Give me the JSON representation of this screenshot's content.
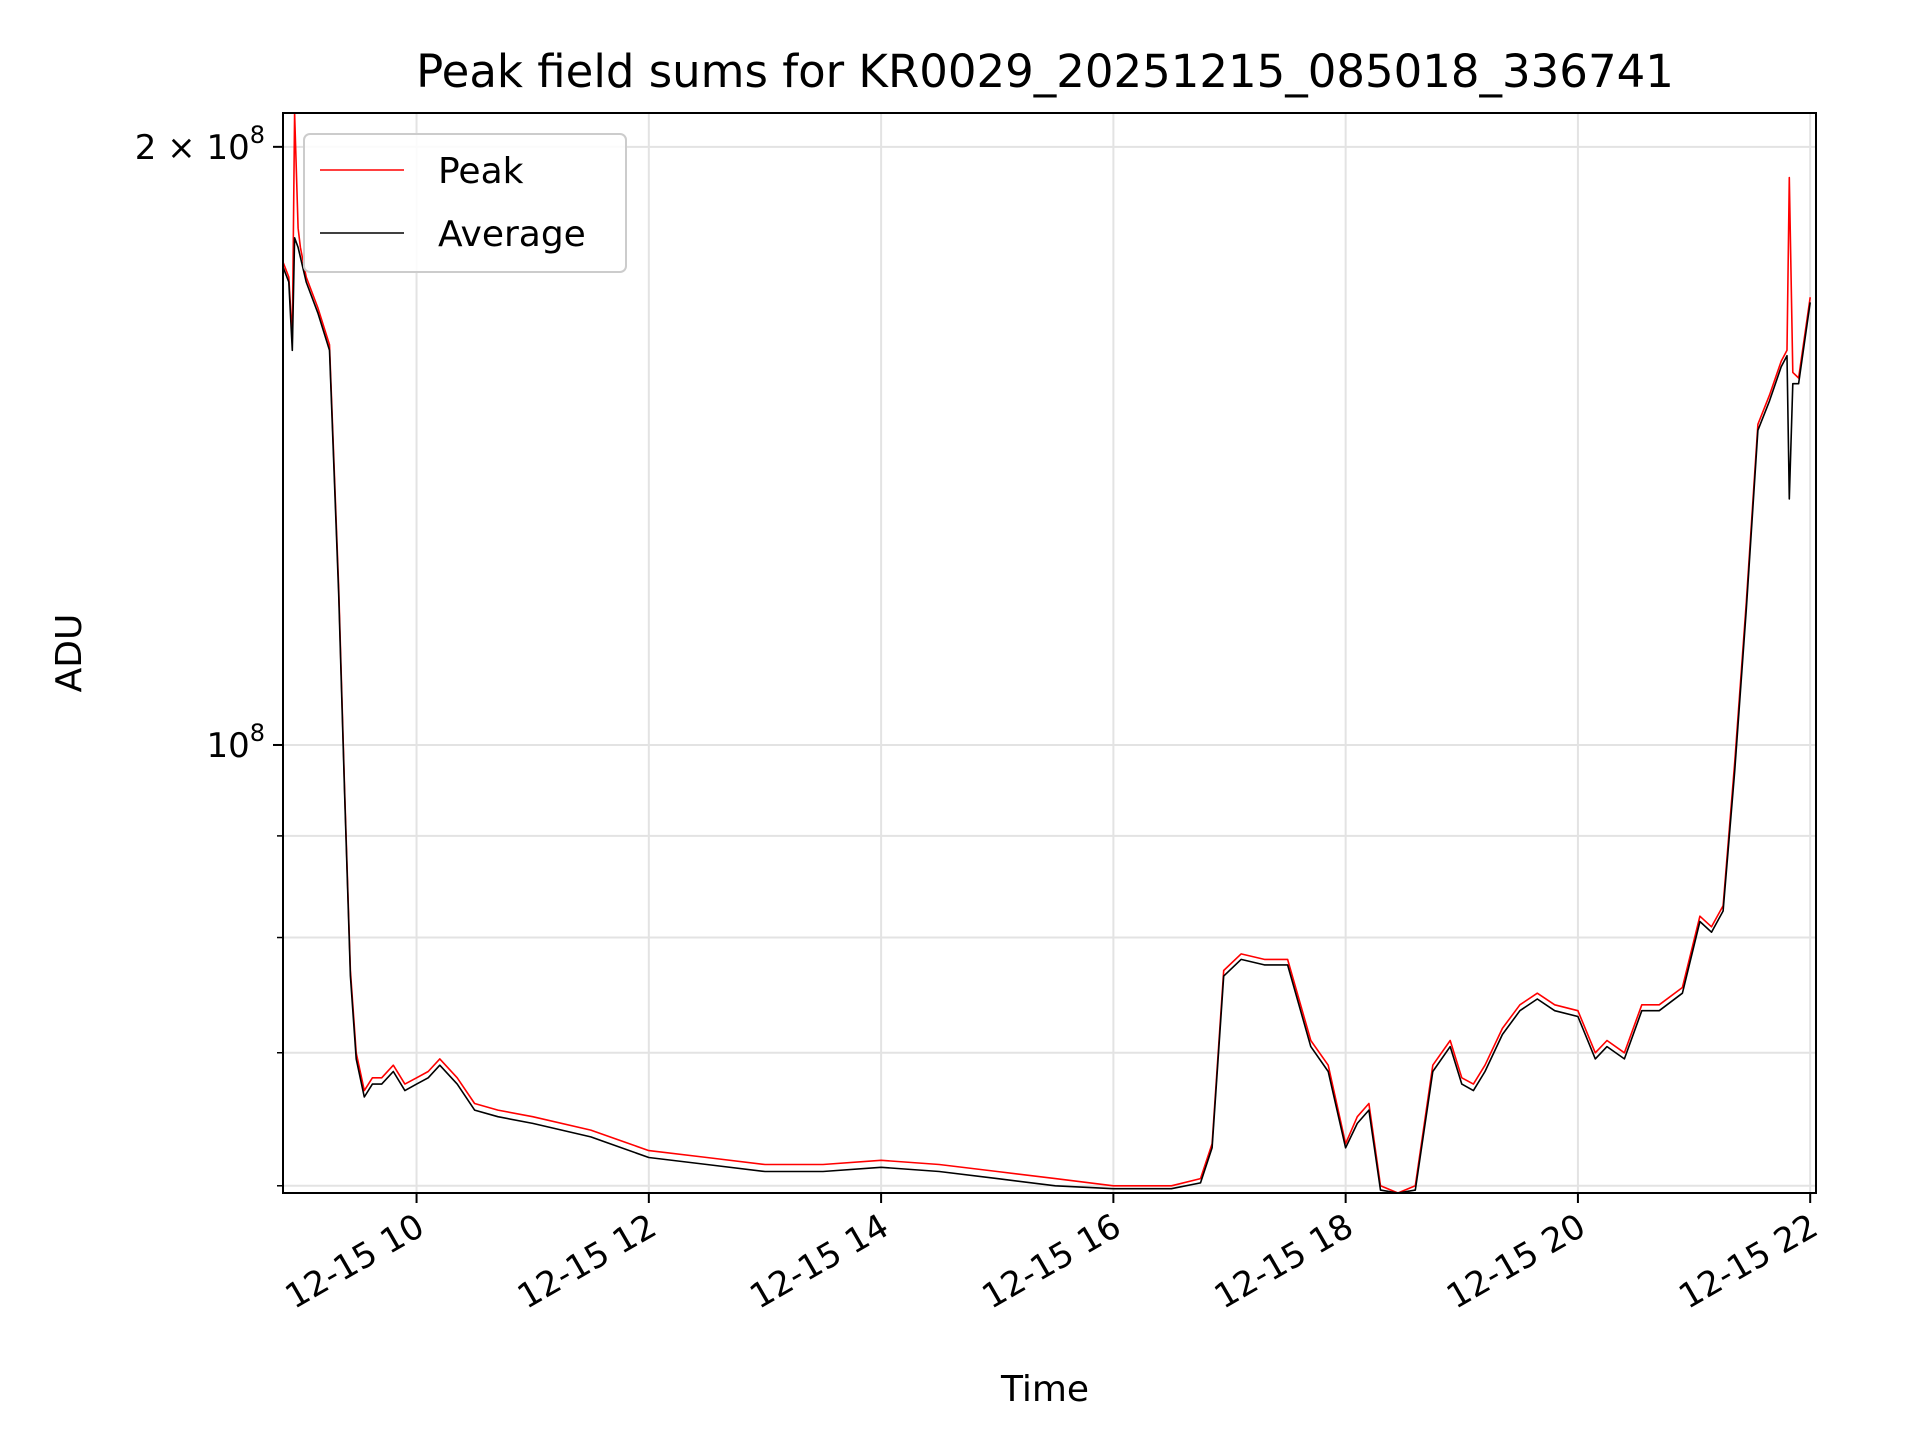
{
  "chart_data": {
    "type": "line",
    "title": "Peak field sums for KR0029_20251215_085018_336741",
    "xlabel": "Time",
    "ylabel": "ADU",
    "x_unit": "hour of 2025-12-15",
    "xlim": [
      8.85,
      22.05
    ],
    "ylim": [
      59500000,
      208000000
    ],
    "yscale": "log",
    "grid": true,
    "legend": {
      "placement": "top-left",
      "entries": [
        "Peak",
        "Average"
      ]
    },
    "x_ticks": [
      {
        "value": 10,
        "label": "12-15 10"
      },
      {
        "value": 12,
        "label": "12-15 12"
      },
      {
        "value": 14,
        "label": "12-15 14"
      },
      {
        "value": 16,
        "label": "12-15 16"
      },
      {
        "value": 18,
        "label": "12-15 18"
      },
      {
        "value": 20,
        "label": "12-15 20"
      },
      {
        "value": 22,
        "label": "12-15 22"
      }
    ],
    "y_major_ticks": [
      {
        "value": 100000000,
        "label_base": "10",
        "label_exp": "8"
      },
      {
        "value": 200000000,
        "label_base": "2 × 10",
        "label_exp": "8"
      }
    ],
    "y_minor_ticks": [
      60000000,
      70000000,
      80000000,
      90000000
    ],
    "series": [
      {
        "name": "Peak",
        "color": "#ff0000",
        "x": [
          8.85,
          8.9,
          8.93,
          8.95,
          8.98,
          9.0,
          9.05,
          9.15,
          9.25,
          9.33,
          9.38,
          9.43,
          9.48,
          9.55,
          9.62,
          9.7,
          9.8,
          9.9,
          10.0,
          10.1,
          10.2,
          10.35,
          10.5,
          10.7,
          11.0,
          11.5,
          12.0,
          12.5,
          13.0,
          13.5,
          14.0,
          14.5,
          15.0,
          15.5,
          16.0,
          16.5,
          16.75,
          16.85,
          16.95,
          17.1,
          17.3,
          17.5,
          17.7,
          17.85,
          18.0,
          18.1,
          18.2,
          18.3,
          18.45,
          18.6,
          18.75,
          18.9,
          19.0,
          19.1,
          19.2,
          19.35,
          19.5,
          19.65,
          19.8,
          20.0,
          20.15,
          20.25,
          20.4,
          20.55,
          20.7,
          20.9,
          21.05,
          21.15,
          21.25,
          21.35,
          21.45,
          21.55,
          21.65,
          21.75,
          21.8,
          21.82,
          21.85,
          21.9,
          22.0
        ],
        "values": [
          175000000,
          172000000,
          160000000,
          208000000,
          182000000,
          178000000,
          172000000,
          166000000,
          159000000,
          120000000,
          95000000,
          77000000,
          70000000,
          67000000,
          68000000,
          68000000,
          69000000,
          67500000,
          68000000,
          68500000,
          69500000,
          68000000,
          66000000,
          65500000,
          65000000,
          64000000,
          62500000,
          62000000,
          61500000,
          61500000,
          61800000,
          61500000,
          61000000,
          60500000,
          60000000,
          60000000,
          60500000,
          63000000,
          77000000,
          78500000,
          78000000,
          78000000,
          71000000,
          69000000,
          63000000,
          65000000,
          66000000,
          60000000,
          59500000,
          60000000,
          69000000,
          71000000,
          68000000,
          67500000,
          69000000,
          72000000,
          74000000,
          75000000,
          74000000,
          73500000,
          70000000,
          71000000,
          70000000,
          74000000,
          74000000,
          75500000,
          82000000,
          81000000,
          83000000,
          98000000,
          118000000,
          145000000,
          150000000,
          156000000,
          158000000,
          193000000,
          154000000,
          153000000,
          168000000
        ]
      },
      {
        "name": "Average",
        "color": "#000000",
        "x": [
          8.85,
          8.9,
          8.93,
          8.95,
          8.98,
          9.0,
          9.05,
          9.15,
          9.25,
          9.33,
          9.38,
          9.43,
          9.48,
          9.55,
          9.62,
          9.7,
          9.8,
          9.9,
          10.0,
          10.1,
          10.2,
          10.35,
          10.5,
          10.7,
          11.0,
          11.5,
          12.0,
          12.5,
          13.0,
          13.5,
          14.0,
          14.5,
          15.0,
          15.5,
          16.0,
          16.5,
          16.75,
          16.85,
          16.95,
          17.1,
          17.3,
          17.5,
          17.7,
          17.85,
          18.0,
          18.1,
          18.2,
          18.3,
          18.45,
          18.6,
          18.75,
          18.9,
          19.0,
          19.1,
          19.2,
          19.35,
          19.5,
          19.65,
          19.8,
          20.0,
          20.15,
          20.25,
          20.4,
          20.55,
          20.7,
          20.9,
          21.05,
          21.15,
          21.25,
          21.35,
          21.45,
          21.55,
          21.65,
          21.75,
          21.8,
          21.82,
          21.85,
          21.9,
          22.0
        ],
        "values": [
          174000000,
          171000000,
          158000000,
          180000000,
          178000000,
          176000000,
          171000000,
          165000000,
          158000000,
          119000000,
          94500000,
          76500000,
          69500000,
          66500000,
          67500000,
          67500000,
          68500000,
          67000000,
          67500000,
          68000000,
          69000000,
          67500000,
          65500000,
          65000000,
          64500000,
          63500000,
          62000000,
          61500000,
          61000000,
          61000000,
          61300000,
          61000000,
          60500000,
          60000000,
          59800000,
          59800000,
          60200000,
          62700000,
          76500000,
          78000000,
          77500000,
          77500000,
          70500000,
          68500000,
          62700000,
          64500000,
          65500000,
          59700000,
          59500000,
          59700000,
          68500000,
          70500000,
          67500000,
          67000000,
          68500000,
          71500000,
          73500000,
          74500000,
          73500000,
          73000000,
          69500000,
          70500000,
          69500000,
          73500000,
          73500000,
          75000000,
          81500000,
          80500000,
          82500000,
          97000000,
          117000000,
          144000000,
          149000000,
          155000000,
          157000000,
          133000000,
          152000000,
          152000000,
          167000000
        ]
      }
    ]
  }
}
